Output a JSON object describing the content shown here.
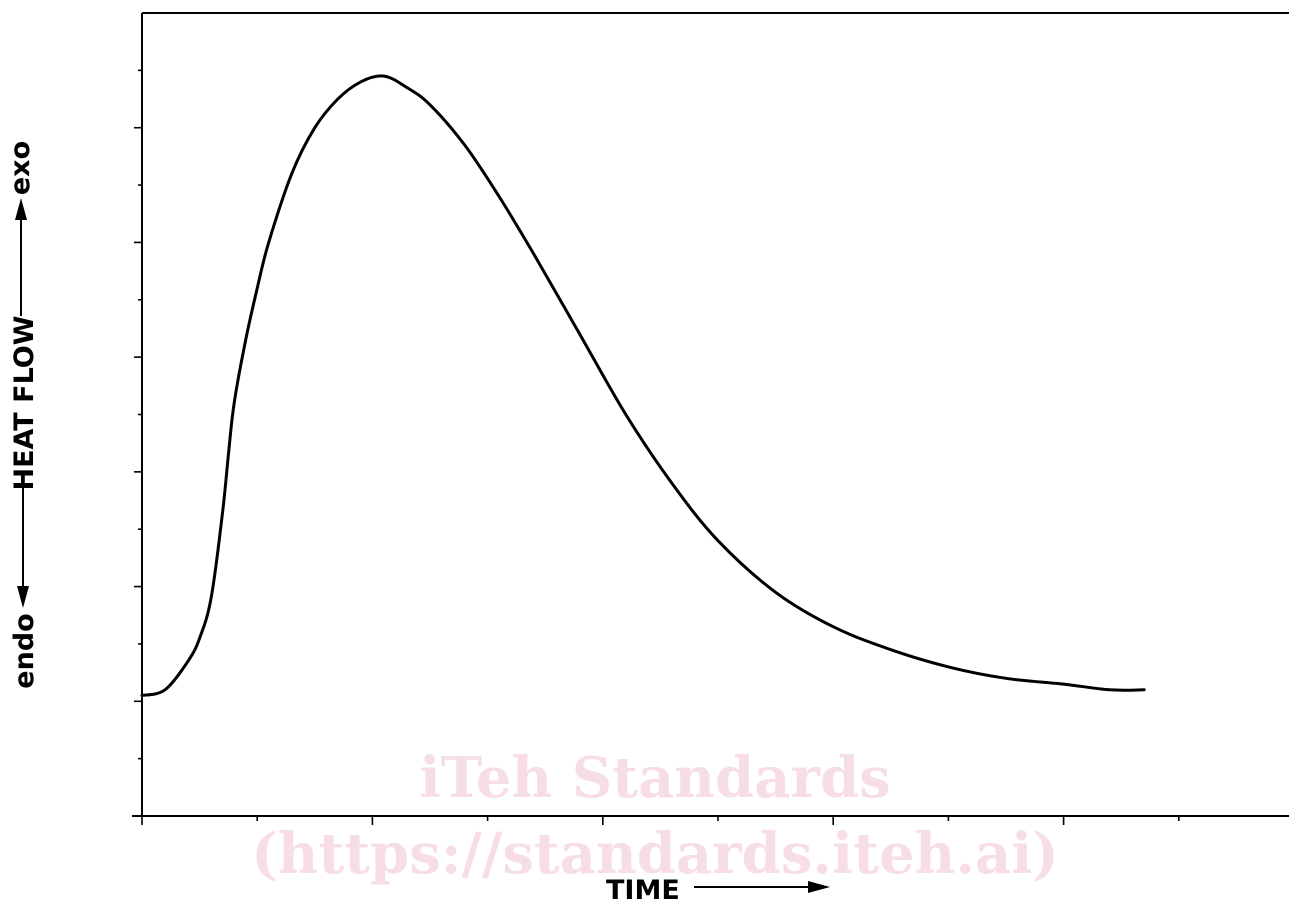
{
  "chart_data": {
    "type": "line",
    "title": "",
    "xlabel": "TIME",
    "ylabel_parts": {
      "bottom": "endo",
      "middle": "HEAT FLOW",
      "top": "exo"
    },
    "xlim": [
      0,
      10
    ],
    "ylim": [
      0,
      14
    ],
    "y_major_ticks": [
      2,
      4,
      6,
      8,
      10,
      12
    ],
    "y_minor_ticks": [
      1,
      3,
      5,
      7,
      9,
      11,
      13
    ],
    "x_major_ticks": [
      2,
      4,
      6,
      8
    ],
    "x_minor_ticks": [
      1,
      3,
      5,
      7,
      9
    ],
    "grid": false,
    "series": [
      {
        "x": [
          0,
          0.2,
          0.4,
          0.5,
          0.6,
          0.7,
          0.75,
          0.8,
          0.9,
          1.0,
          1.1,
          1.3,
          1.5,
          1.7,
          1.9,
          2.1,
          2.3,
          2.5,
          2.8,
          3.1,
          3.4,
          3.8,
          4.2,
          4.6,
          5.0,
          5.5,
          6.0,
          6.5,
          7.0,
          7.5,
          8.0,
          8.4,
          8.7
        ],
        "y": [
          2.1,
          2.2,
          2.7,
          3.1,
          3.8,
          5.3,
          6.3,
          7.2,
          8.3,
          9.2,
          10.0,
          11.2,
          12.0,
          12.5,
          12.8,
          12.9,
          12.7,
          12.4,
          11.7,
          10.8,
          9.8,
          8.4,
          7.0,
          5.8,
          4.8,
          3.9,
          3.3,
          2.9,
          2.6,
          2.4,
          2.3,
          2.2,
          2.2
        ]
      }
    ]
  },
  "watermark": {
    "line1": "iTeh Standards",
    "line2": "(https://standards.iteh.ai)"
  }
}
